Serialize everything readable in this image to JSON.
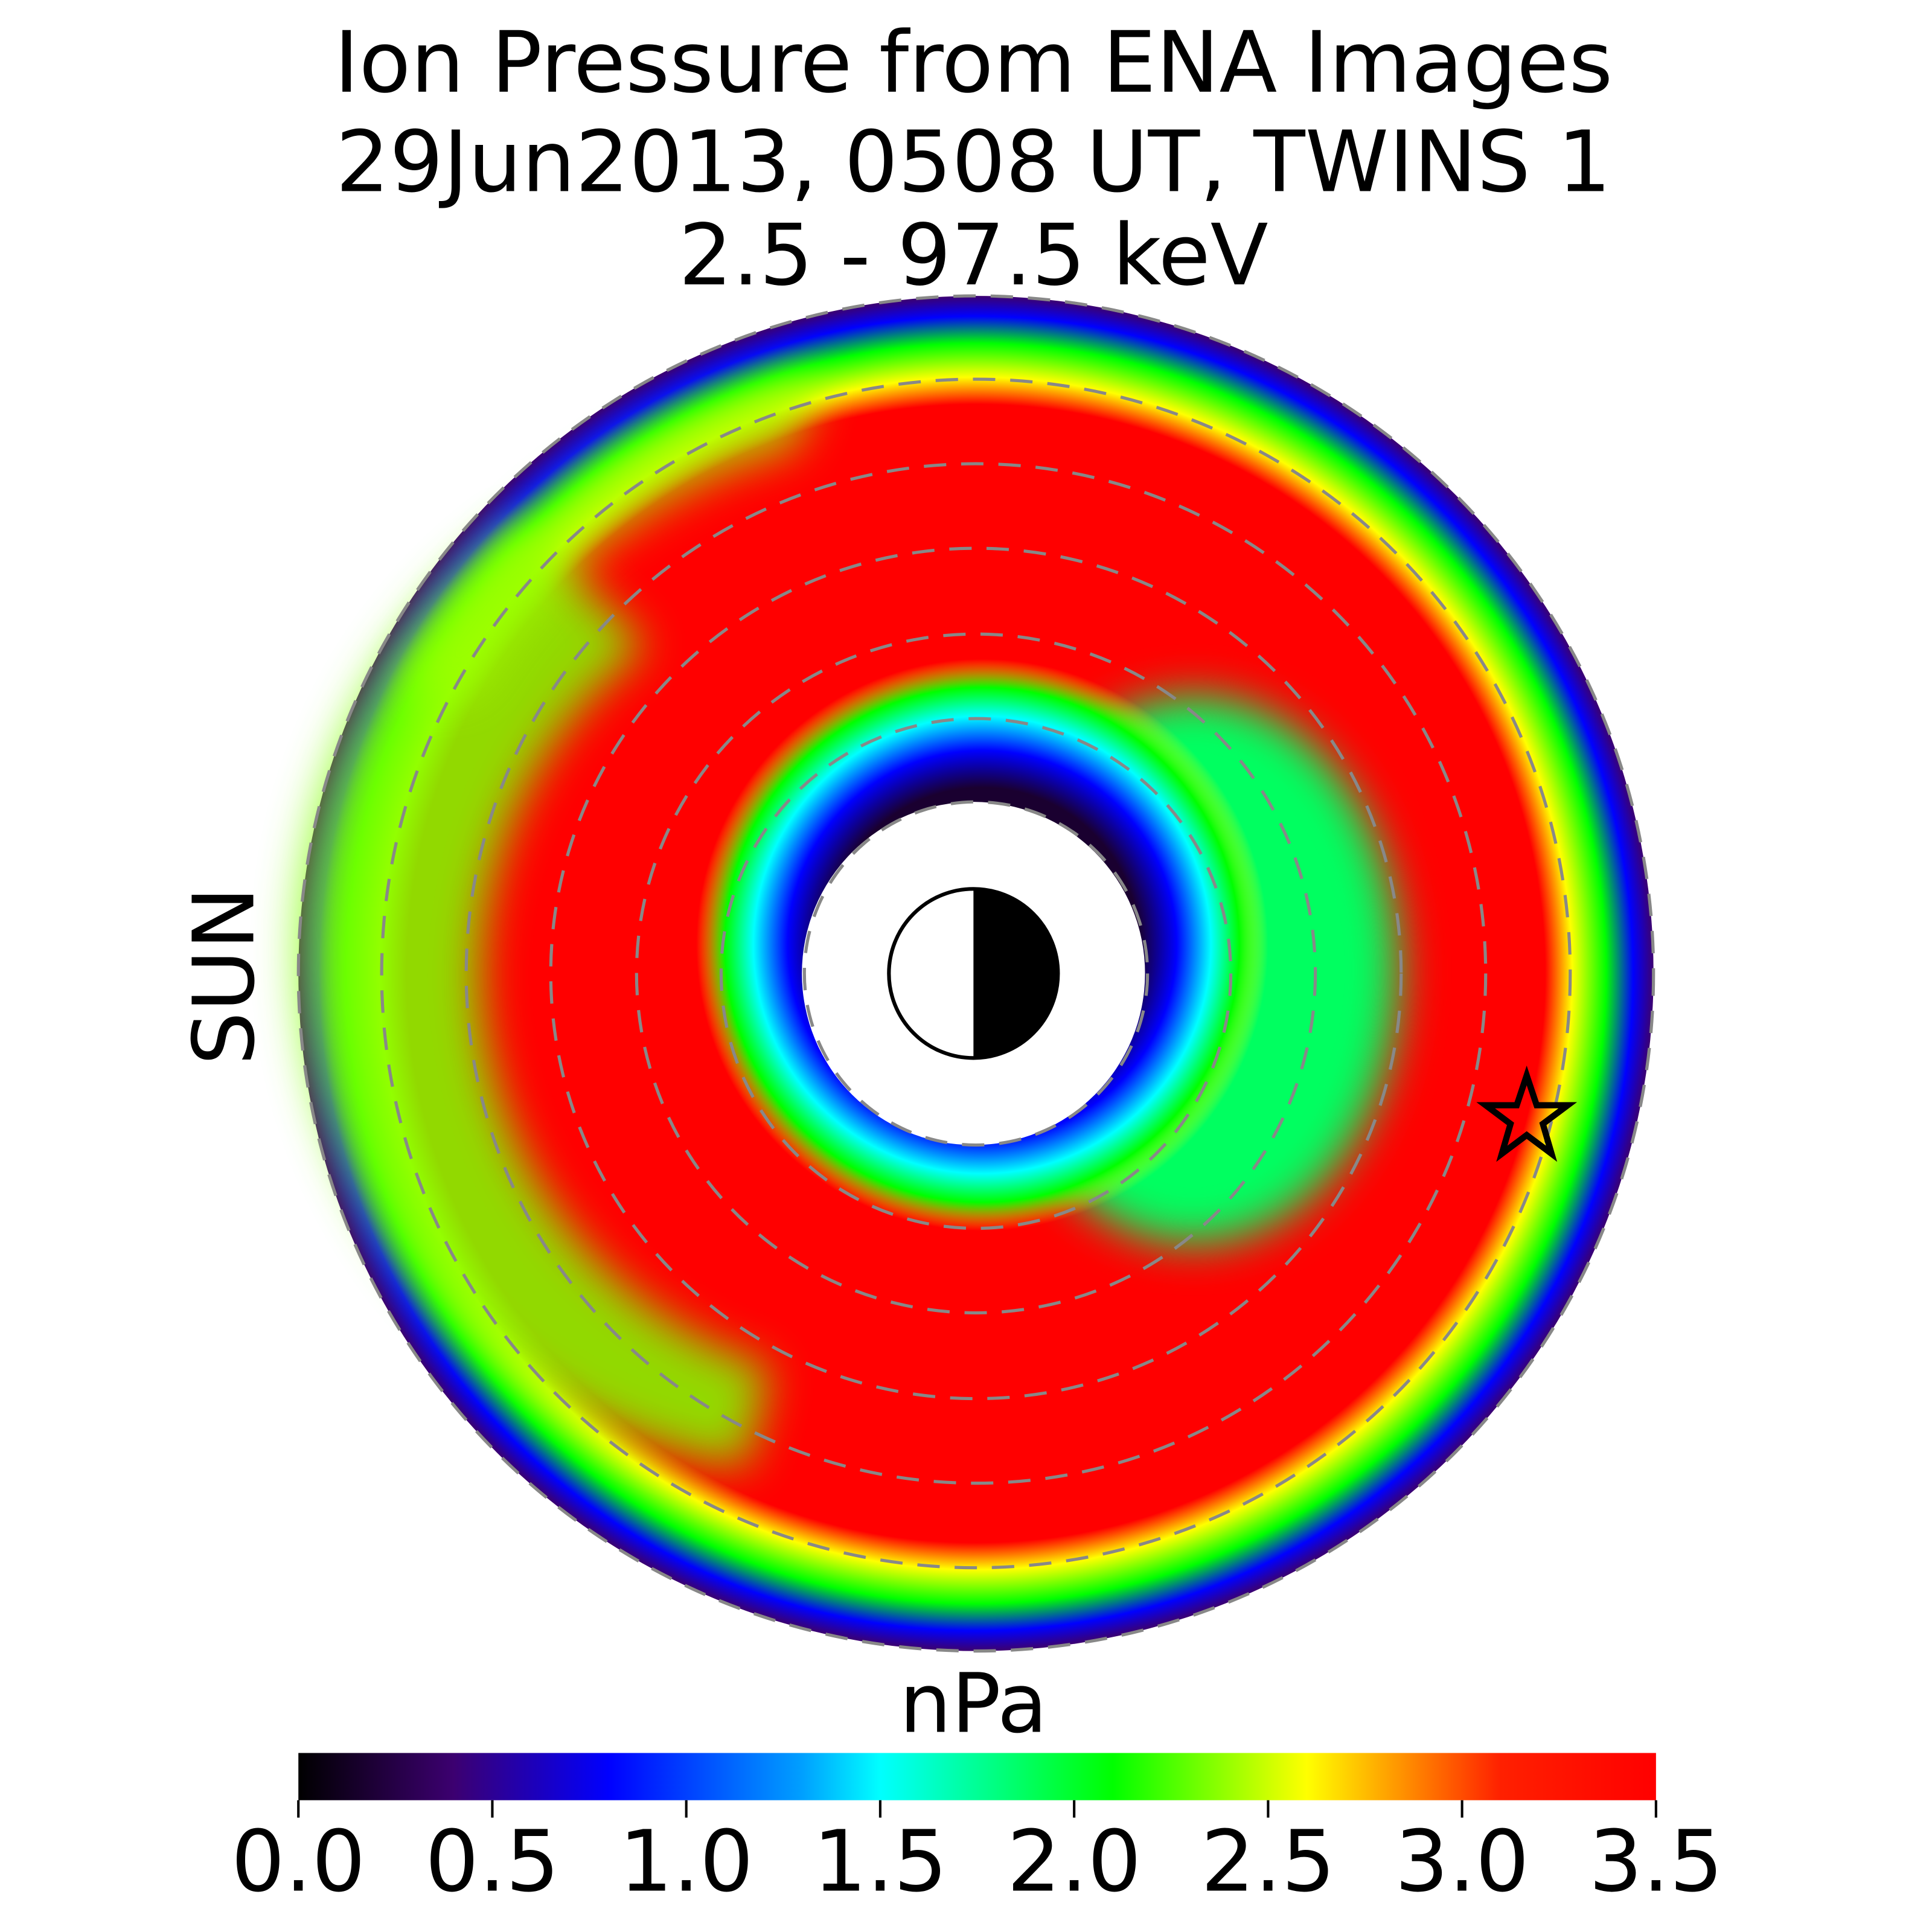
{
  "chart_data": {
    "type": "heatmap",
    "title": [
      "Ion Pressure from  ENA Images",
      "29Jun2013, 0508 UT,  TWINS 1",
      "2.5 - 97.5 keV"
    ],
    "direction_label": "SUN",
    "direction_color": "#f5a000",
    "colorbar_label": "nPa",
    "clim": [
      0,
      3.5
    ],
    "cticks": [
      {
        "value": 0,
        "label": "0.0"
      },
      {
        "value": 0.5,
        "label": "0.5"
      },
      {
        "value": 1,
        "label": "1.0"
      },
      {
        "value": 1.5,
        "label": "1.5"
      },
      {
        "value": 2,
        "label": "2.0"
      },
      {
        "value": 2.5,
        "label": "2.5"
      },
      {
        "value": 3,
        "label": "3.0"
      },
      {
        "value": 3.5,
        "label": "3.5"
      }
    ],
    "colormap": [
      {
        "value": 0,
        "color": "#000000"
      },
      {
        "value": 0.4,
        "color": "#3c0070"
      },
      {
        "value": 0.8,
        "color": "#0000ff"
      },
      {
        "value": 1.3,
        "color": "#00a0ff"
      },
      {
        "value": 1.5,
        "color": "#00ffff"
      },
      {
        "value": 2.1,
        "color": "#00ff00"
      },
      {
        "value": 2.6,
        "color": "#ffff00"
      },
      {
        "value": 3.1,
        "color": "#ff2000"
      },
      {
        "value": 3.5,
        "color": "#ff0000"
      }
    ]
  }
}
